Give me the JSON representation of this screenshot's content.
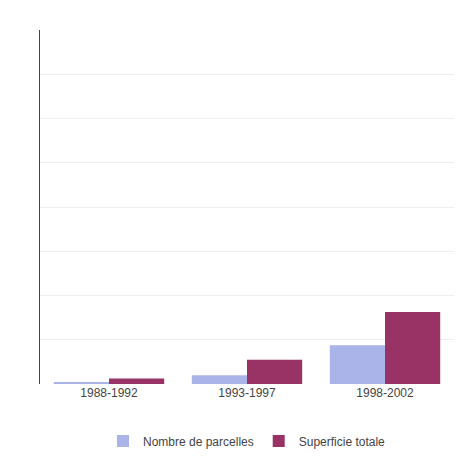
{
  "chart_data": {
    "type": "bar",
    "categories": [
      "1988-1992",
      "1993-1997",
      "1998-2002"
    ],
    "series": [
      {
        "name": "Nombre de parcelles",
        "color": "#aab4e8",
        "values": [
          1,
          8,
          35
        ]
      },
      {
        "name": "Superficie totale",
        "color": "#993366",
        "values": [
          5,
          22,
          65
        ]
      }
    ],
    "ylim": [
      0,
      320
    ],
    "yticks": [
      0,
      40,
      80,
      120,
      160,
      200,
      240,
      280,
      320
    ],
    "grid": true,
    "legend": "bottom",
    "tick_labels": "x"
  }
}
